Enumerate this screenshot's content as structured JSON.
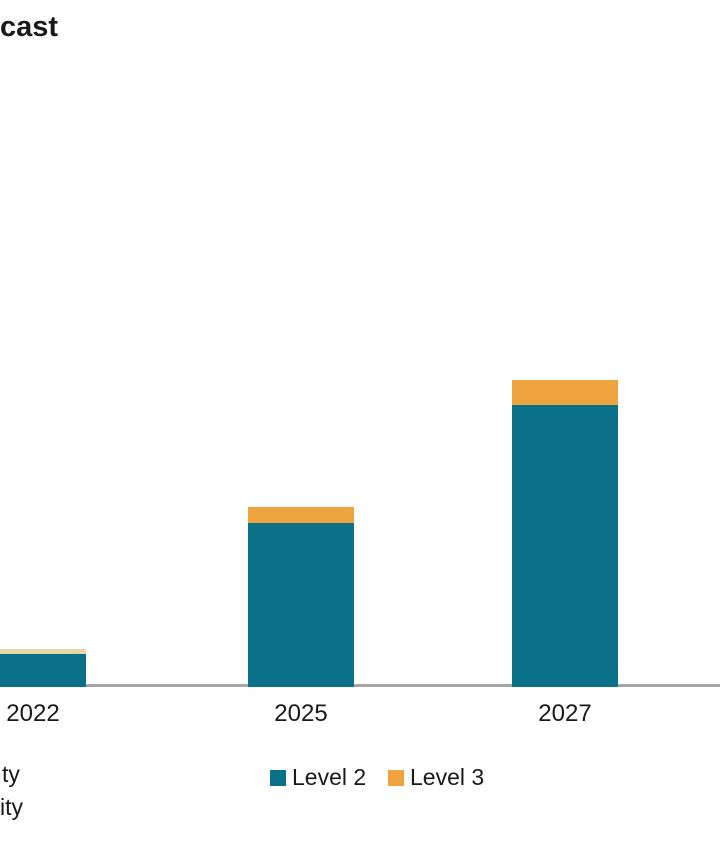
{
  "header": {
    "title_fragment": "cast"
  },
  "colors": {
    "level2": "#0A7189",
    "level3": "#EEA43F",
    "level3_2022_cap": "#E5D8A4",
    "axis_line": "#A6A6A6",
    "text": "#1A1A1A",
    "background": "#FFFFFF"
  },
  "legend": {
    "cropped_left_fragments": [
      "ty",
      "ity"
    ],
    "items": [
      {
        "label": "Level 2",
        "color": "#0A7189"
      },
      {
        "label": "Level 3",
        "color": "#EEA43F"
      }
    ]
  },
  "chart_data": {
    "type": "bar",
    "stacked": true,
    "categories": [
      "2022",
      "2025",
      "2027"
    ],
    "series": [
      {
        "name": "Level 2",
        "color": "#0A7189",
        "values": [
          33,
          164,
          282
        ],
        "point_colors": [
          null,
          null,
          null
        ]
      },
      {
        "name": "Level 3",
        "color": "#EEA43F",
        "values": [
          5,
          16,
          25
        ],
        "point_colors": [
          "#E5D8A4",
          null,
          null
        ]
      }
    ],
    "title": "cast",
    "xlabel": "",
    "ylabel": "",
    "value_units": "relative height (y-axis not visible in cropped screenshot)",
    "ylim": [
      0,
      380
    ],
    "grid": false,
    "legend_position": "bottom"
  }
}
